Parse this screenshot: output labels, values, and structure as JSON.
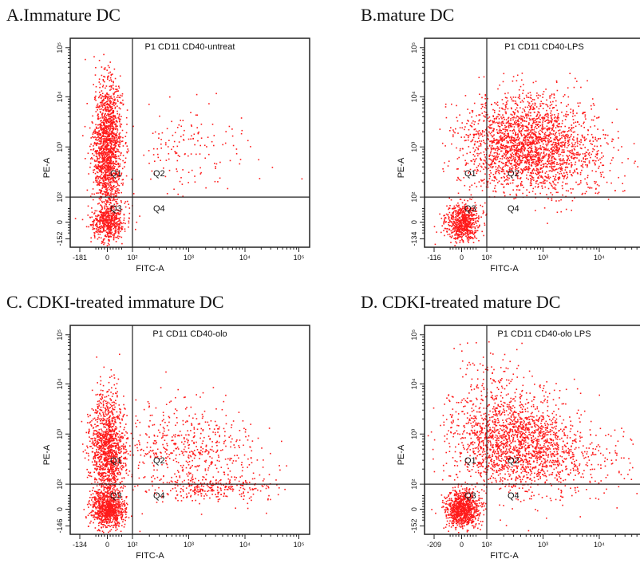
{
  "figure": {
    "background": "#ffffff",
    "dot_color": "#ff1a1a"
  },
  "chart_data": [
    {
      "type": "scatter",
      "panel_title": "A.Immature DC",
      "title": "P1 CD11 CD40-untreat",
      "xlabel": "FITC-A",
      "ylabel": "PE-A",
      "x_ticks": [
        "-181",
        "0",
        "10²",
        "10³",
        "10⁴",
        "10⁵"
      ],
      "y_ticks": [
        "-152",
        "0",
        "10²",
        "10³",
        "10⁴",
        "10⁵"
      ],
      "quadrant_gate": {
        "x": 100,
        "y": 100
      },
      "quadrants": [
        "Q1",
        "Q2",
        "Q3",
        "Q4"
      ],
      "populations": [
        {
          "name": "main-vertical",
          "x_center": 0,
          "y_center": 1000,
          "count": 1600
        },
        {
          "name": "low-dense",
          "x_center": 0,
          "y_center": 0,
          "count": 500
        },
        {
          "name": "sparse-q2",
          "x_center": 1000,
          "y_center": 1000,
          "count": 160
        }
      ]
    },
    {
      "type": "scatter",
      "panel_title": "B.mature DC",
      "title": "P1 CD11 CD40-LPS",
      "xlabel": "FITC-A",
      "ylabel": "PE-A",
      "x_ticks": [
        "-116",
        "0",
        "10²",
        "10³",
        "10⁴",
        "10⁵"
      ],
      "y_ticks": [
        "-134",
        "0",
        "10²",
        "10³",
        "10⁴",
        "10⁵"
      ],
      "quadrant_gate": {
        "x": 100,
        "y": 100
      },
      "quadrants": [
        "Q1",
        "Q2",
        "Q3",
        "Q4"
      ],
      "populations": [
        {
          "name": "low-dense",
          "x_center": 0,
          "y_center": 0,
          "count": 700
        },
        {
          "name": "main-cloud",
          "x_center": 500,
          "y_center": 1500,
          "count": 1800
        },
        {
          "name": "wide-q2",
          "x_center": 1000,
          "y_center": 500,
          "count": 700
        }
      ]
    },
    {
      "type": "scatter",
      "panel_title": "C. CDKI-treated immature DC",
      "title": "P1 CD11 CD40-olo",
      "xlabel": "FITC-A",
      "ylabel": "PE-A",
      "x_ticks": [
        "-134",
        "0",
        "10²",
        "10³",
        "10⁴",
        "10⁵"
      ],
      "y_ticks": [
        "-146",
        "0",
        "10²",
        "10³",
        "10⁴",
        "10⁵"
      ],
      "quadrant_gate": {
        "x": 100,
        "y": 100
      },
      "quadrants": [
        "Q1",
        "Q2",
        "Q3",
        "Q4"
      ],
      "populations": [
        {
          "name": "low-dense",
          "x_center": 0,
          "y_center": 0,
          "count": 800
        },
        {
          "name": "vertical-band",
          "x_center": 0,
          "y_center": 500,
          "count": 1300
        },
        {
          "name": "sparse-q2",
          "x_center": 1000,
          "y_center": 500,
          "count": 550
        },
        {
          "name": "tail-q4",
          "x_center": 3000,
          "y_center": 60,
          "count": 250
        }
      ]
    },
    {
      "type": "scatter",
      "panel_title": "D. CDKI-treated mature DC",
      "title": "P1 CD11 CD40-olo LPS",
      "xlabel": "FITC-A",
      "ylabel": "PE-A",
      "x_ticks": [
        "-209",
        "0",
        "10²",
        "10³",
        "10⁴",
        "10⁵"
      ],
      "y_ticks": [
        "-152",
        "0",
        "10²",
        "10³",
        "10⁴",
        "10⁵"
      ],
      "quadrant_gate": {
        "x": 100,
        "y": 100
      },
      "quadrants": [
        "Q1",
        "Q2",
        "Q3",
        "Q4"
      ],
      "populations": [
        {
          "name": "low-dense",
          "x_center": 0,
          "y_center": 0,
          "count": 900
        },
        {
          "name": "main-cloud",
          "x_center": 300,
          "y_center": 800,
          "count": 1500
        },
        {
          "name": "scatter-wide",
          "x_center": 1000,
          "y_center": 300,
          "count": 500
        },
        {
          "name": "upper-sparse",
          "x_center": 100,
          "y_center": 10000,
          "count": 150
        }
      ]
    }
  ]
}
